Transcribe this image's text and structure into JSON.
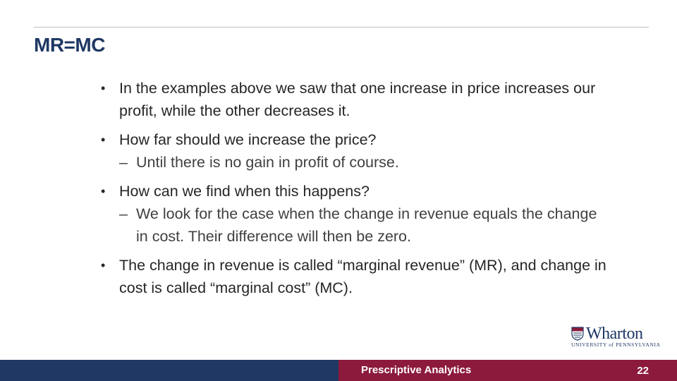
{
  "slide": {
    "title": "MR=MC",
    "bullets": [
      {
        "text": "In the examples above we saw that one increase in price increases our profit, while the other decreases it.",
        "subs": []
      },
      {
        "text": "How far should we increase the price?",
        "subs": [
          "Until there is no gain in profit of course."
        ]
      },
      {
        "text": "How can we find when this happens?",
        "subs": [
          "We look for the case when the change in revenue equals the change in cost. Their difference will then be zero."
        ]
      },
      {
        "text": "The change in revenue is called “marginal revenue” (MR), and change in cost is called “marginal cost” (MC).",
        "subs": []
      }
    ],
    "bullet_mark": "•",
    "sub_mark": "–"
  },
  "logo": {
    "name": "Wharton",
    "university": "UNIVERSITY of PENNSYLVANIA"
  },
  "footer": {
    "course": "Prescriptive Analytics",
    "page": "22"
  },
  "colors": {
    "title": "#1f3864",
    "footer_left": "#1f3864",
    "footer_right": "#8c1a3c"
  }
}
